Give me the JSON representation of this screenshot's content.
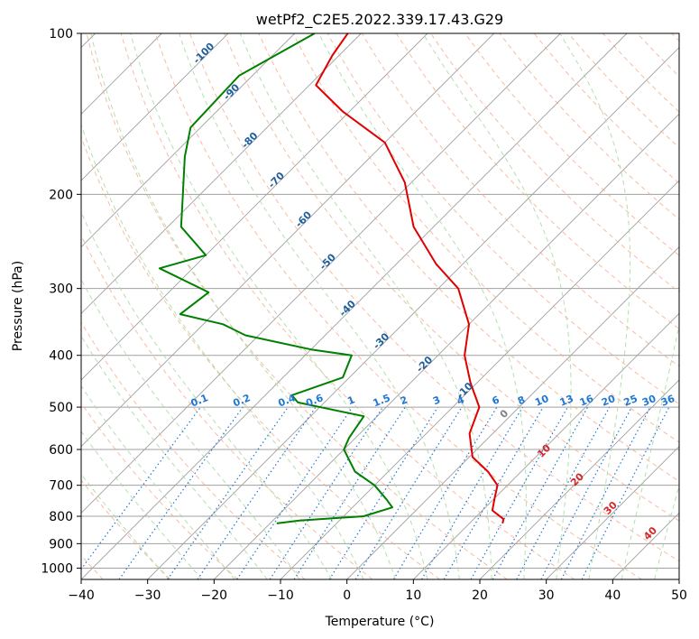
{
  "chart_data": {
    "type": "line",
    "title": "wetPf2_C2E5.2022.339.17.43.G29",
    "xlabel": "Temperature (°C)",
    "ylabel": "Pressure (hPa)",
    "xlim": [
      -40,
      50
    ],
    "ylim": [
      1050,
      100
    ],
    "y_scale": "log",
    "grid": true,
    "x_ticks": [
      -40,
      -30,
      -20,
      -10,
      0,
      10,
      20,
      30,
      40,
      50
    ],
    "y_ticks": [
      100,
      200,
      300,
      400,
      500,
      600,
      700,
      800,
      900,
      1000
    ],
    "series": [
      {
        "color": "#e00000",
        "points": [
          [
            -82.0,
            100
          ],
          [
            -81.0,
            110
          ],
          [
            -79.0,
            125
          ],
          [
            -71.0,
            140
          ],
          [
            -60.0,
            160
          ],
          [
            -51.0,
            190
          ],
          [
            -43.0,
            230
          ],
          [
            -34.0,
            270
          ],
          [
            -27.0,
            300
          ],
          [
            -20.0,
            350
          ],
          [
            -16.0,
            400
          ],
          [
            -11.0,
            450
          ],
          [
            -6.0,
            500
          ],
          [
            -3.5,
            560
          ],
          [
            0.5,
            620
          ],
          [
            5.0,
            660
          ],
          [
            8.5,
            700
          ],
          [
            10.0,
            740
          ],
          [
            11.5,
            780
          ],
          [
            14.5,
            810
          ],
          [
            15.0,
            825
          ]
        ]
      },
      {
        "color": "#008000",
        "points": [
          [
            -87.0,
            100
          ],
          [
            -92.0,
            120
          ],
          [
            -91.5,
            150
          ],
          [
            -88.0,
            170
          ],
          [
            -81.0,
            210
          ],
          [
            -78.0,
            230
          ],
          [
            -70.0,
            260
          ],
          [
            -75.0,
            275
          ],
          [
            -64.0,
            305
          ],
          [
            -65.0,
            335
          ],
          [
            -57.0,
            350
          ],
          [
            -52.0,
            367
          ],
          [
            -40.0,
            390
          ],
          [
            -33.0,
            400
          ],
          [
            -31.0,
            440
          ],
          [
            -36.0,
            475
          ],
          [
            -34.0,
            490
          ],
          [
            -22.0,
            520
          ],
          [
            -21.0,
            570
          ],
          [
            -20.0,
            600
          ],
          [
            -15.0,
            660
          ],
          [
            -10.0,
            700
          ],
          [
            -6.0,
            745
          ],
          [
            -4.0,
            770
          ],
          [
            -7.0,
            800
          ],
          [
            -16.0,
            815
          ],
          [
            -19.0,
            825
          ]
        ]
      }
    ],
    "isotherm_labels": [
      {
        "text": "-100",
        "t": -100,
        "p": 110
      },
      {
        "text": "-90",
        "t": -90,
        "p": 130
      },
      {
        "text": "-80",
        "t": -80,
        "p": 160
      },
      {
        "text": "-70",
        "t": -70,
        "p": 190
      },
      {
        "text": "-60",
        "t": -60,
        "p": 225
      },
      {
        "text": "-50",
        "t": -50,
        "p": 270
      },
      {
        "text": "-40",
        "t": -40,
        "p": 330
      },
      {
        "text": "-30",
        "t": -30,
        "p": 380
      },
      {
        "text": "-20",
        "t": -20,
        "p": 420
      },
      {
        "text": "-10",
        "t": -10,
        "p": 470
      }
    ],
    "mixing_ratio_labels": [
      "0.1",
      "0.2",
      "0.4",
      "0.6",
      "1",
      "1.5",
      "2",
      "3",
      "4",
      "6",
      "8",
      "10",
      "13",
      "16",
      "20",
      "25",
      "30",
      "36"
    ],
    "moist_adiabat_labels": [
      {
        "text": "0",
        "t": 24,
        "p": 520,
        "color": "#808080"
      },
      {
        "text": "10",
        "t": 30,
        "p": 610,
        "color": "#d62728"
      },
      {
        "text": "20",
        "t": 35,
        "p": 690,
        "color": "#d62728"
      },
      {
        "text": "30",
        "t": 40,
        "p": 780,
        "color": "#d62728"
      },
      {
        "text": "40",
        "t": 46,
        "p": 870,
        "color": "#d62728"
      }
    ],
    "colors": {
      "temperature": "#e00000",
      "dewpoint": "#008000",
      "isotherm": "#a0a0a0",
      "dry_adiabat": "#f4a582",
      "moist_adiabat": "#a6d9a0",
      "mixing_ratio": "#1f77d4",
      "isotherm_label": "#1f5f9f"
    }
  }
}
